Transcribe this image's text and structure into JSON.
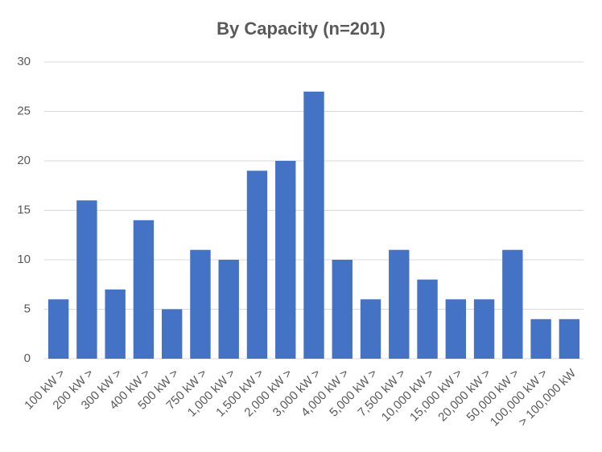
{
  "chart_data": {
    "type": "bar",
    "title": "By Capacity (n=201)",
    "categories": [
      "100 kW >",
      "200 kW >",
      "300 kW >",
      "400 kW >",
      "500 kW >",
      "750 kW >",
      "1,000 kW >",
      "1,500 kW >",
      "2,000 kW >",
      "3,000 kW >",
      "4,000 kW >",
      "5,000 kW >",
      "7,500 kW >",
      "10,000 kW >",
      "15,000 kW >",
      "20,000 kW >",
      "50,000 kW >",
      "100,000 kW >",
      "> 100,000 kW"
    ],
    "values": [
      6,
      16,
      7,
      14,
      5,
      11,
      10,
      19,
      20,
      27,
      10,
      6,
      11,
      8,
      6,
      6,
      11,
      4,
      4
    ],
    "color": "#4472c4",
    "ylim": [
      0,
      30
    ],
    "yticks": [
      0,
      5,
      10,
      15,
      20,
      25,
      30
    ],
    "grid": true
  }
}
